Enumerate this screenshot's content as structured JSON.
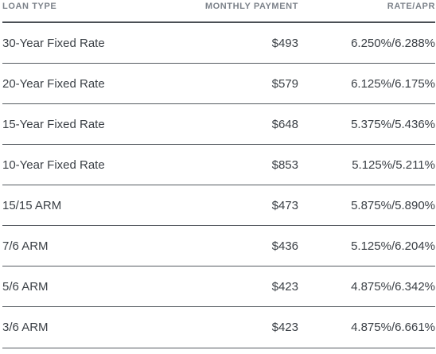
{
  "table": {
    "headers": {
      "loan_type": "LOAN TYPE",
      "monthly_payment": "MONTHLY PAYMENT",
      "rate_apr": "RATE/APR"
    },
    "rows": [
      {
        "loan_type": "30-Year Fixed Rate",
        "monthly_payment": "$493",
        "rate_apr": "6.250%/6.288%"
      },
      {
        "loan_type": "20-Year Fixed Rate",
        "monthly_payment": "$579",
        "rate_apr": "6.125%/6.175%"
      },
      {
        "loan_type": "15-Year Fixed Rate",
        "monthly_payment": "$648",
        "rate_apr": "5.375%/5.436%"
      },
      {
        "loan_type": "10-Year Fixed Rate",
        "monthly_payment": "$853",
        "rate_apr": "5.125%/5.211%"
      },
      {
        "loan_type": "15/15 ARM",
        "monthly_payment": "$473",
        "rate_apr": "5.875%/5.890%"
      },
      {
        "loan_type": "7/6 ARM",
        "monthly_payment": "$436",
        "rate_apr": "5.125%/6.204%"
      },
      {
        "loan_type": "5/6 ARM",
        "monthly_payment": "$423",
        "rate_apr": "4.875%/6.342%"
      },
      {
        "loan_type": "3/6 ARM",
        "monthly_payment": "$423",
        "rate_apr": "4.875%/6.661%"
      }
    ]
  },
  "colors": {
    "text": "#3b4046",
    "header_text": "#7c828a",
    "divider": "#555b61"
  }
}
